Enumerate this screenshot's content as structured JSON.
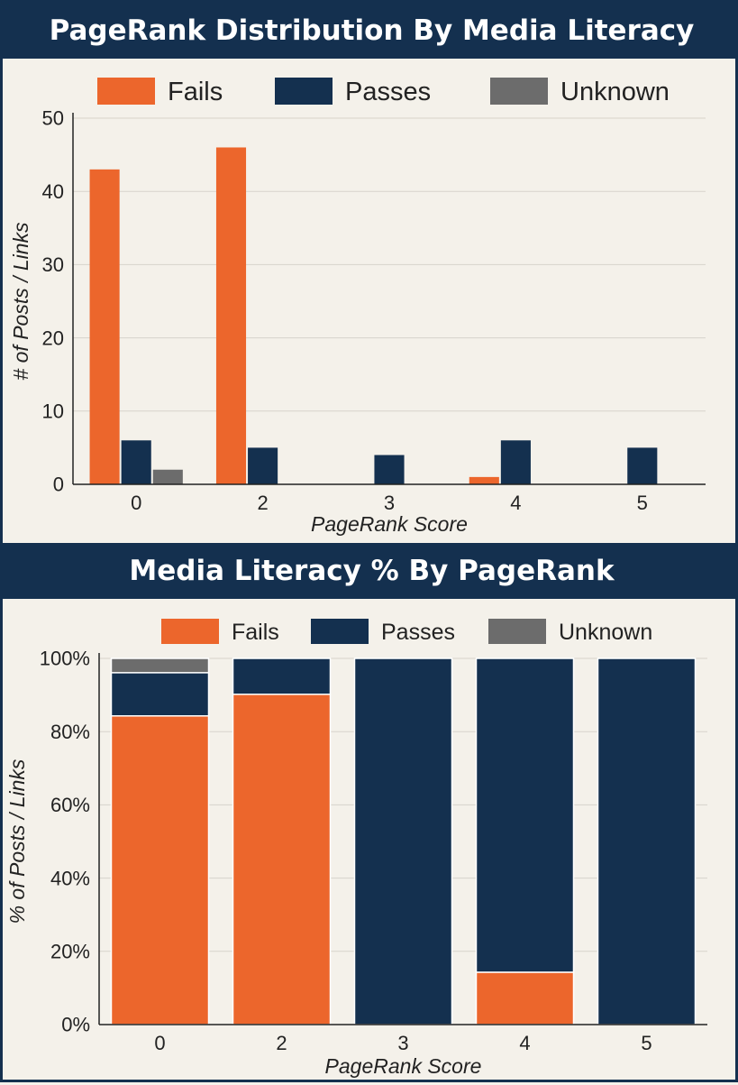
{
  "colors": {
    "fails": "#ec662c",
    "passes": "#14304f",
    "unknown": "#6c6c6c",
    "grid": "#d7d3cb"
  },
  "chart_data": [
    {
      "type": "bar",
      "title": "PageRank Distribution By Media Literacy",
      "xlabel": "PageRank Score",
      "ylabel": "# of Posts / Links",
      "categories": [
        "0",
        "2",
        "3",
        "4",
        "5"
      ],
      "ylim": [
        0,
        50
      ],
      "yticks": [
        "0",
        "10",
        "20",
        "30",
        "40",
        "50"
      ],
      "grid": true,
      "legend_position": "top",
      "series": [
        {
          "name": "Fails",
          "values": [
            43,
            46,
            0,
            1,
            0
          ]
        },
        {
          "name": "Passes",
          "values": [
            6,
            5,
            4,
            6,
            5
          ]
        },
        {
          "name": "Unknown",
          "values": [
            2,
            0,
            0,
            0,
            0
          ]
        }
      ]
    },
    {
      "type": "bar",
      "stacked": true,
      "title": "Media Literacy % By PageRank",
      "xlabel": "PageRank Score",
      "ylabel": "% of Posts / Links",
      "categories": [
        "0",
        "2",
        "3",
        "4",
        "5"
      ],
      "ylim": [
        0,
        100
      ],
      "yticks": [
        "0%",
        "20%",
        "40%",
        "60%",
        "80%",
        "100%"
      ],
      "grid": true,
      "legend_position": "top",
      "series": [
        {
          "name": "Fails",
          "values": [
            84.3,
            90.2,
            0,
            14.3,
            0
          ]
        },
        {
          "name": "Passes",
          "values": [
            11.8,
            9.8,
            100,
            85.7,
            100
          ]
        },
        {
          "name": "Unknown",
          "values": [
            3.9,
            0,
            0,
            0,
            0
          ]
        }
      ]
    }
  ]
}
